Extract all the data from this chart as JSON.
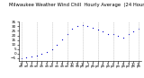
{
  "title": "Milwaukee Weather Wind Chill  Hourly Average  (24 Hours)",
  "title_fontsize": 3.8,
  "ylabel_fontsize": 3.0,
  "xlabel_fontsize": 2.6,
  "background_color": "#ffffff",
  "line_color": "#0000cc",
  "grid_color": "#aaaaaa",
  "hours": [
    0,
    1,
    2,
    3,
    4,
    5,
    6,
    7,
    8,
    9,
    10,
    11,
    12,
    13,
    14,
    15,
    16,
    17,
    18,
    19,
    20,
    21,
    22,
    23
  ],
  "x_labels": [
    "12",
    "1",
    "2",
    "3",
    "4",
    "5",
    "6",
    "7",
    "8",
    "9",
    "10",
    "11",
    "12",
    "1",
    "2",
    "3",
    "4",
    "5",
    "6",
    "7",
    "8",
    "9",
    "10",
    "11"
  ],
  "x_labels2": [
    "am",
    "am",
    "am",
    "am",
    "am",
    "am",
    "am",
    "am",
    "am",
    "am",
    "am",
    "am",
    "pm",
    "pm",
    "pm",
    "pm",
    "pm",
    "pm",
    "pm",
    "pm",
    "pm",
    "pm",
    "pm",
    "pm"
  ],
  "values": [
    -5,
    -4,
    -3,
    -2,
    0,
    2,
    5,
    10,
    16,
    22,
    27,
    30,
    31,
    30,
    28,
    26,
    24,
    22,
    22,
    20,
    18,
    22,
    24,
    27
  ],
  "ylim": [
    -8,
    35
  ],
  "yticks": [
    -5,
    0,
    5,
    10,
    15,
    20,
    25,
    30,
    35
  ],
  "grid_hours": [
    0,
    3,
    6,
    9,
    12,
    15,
    18,
    21,
    23
  ]
}
